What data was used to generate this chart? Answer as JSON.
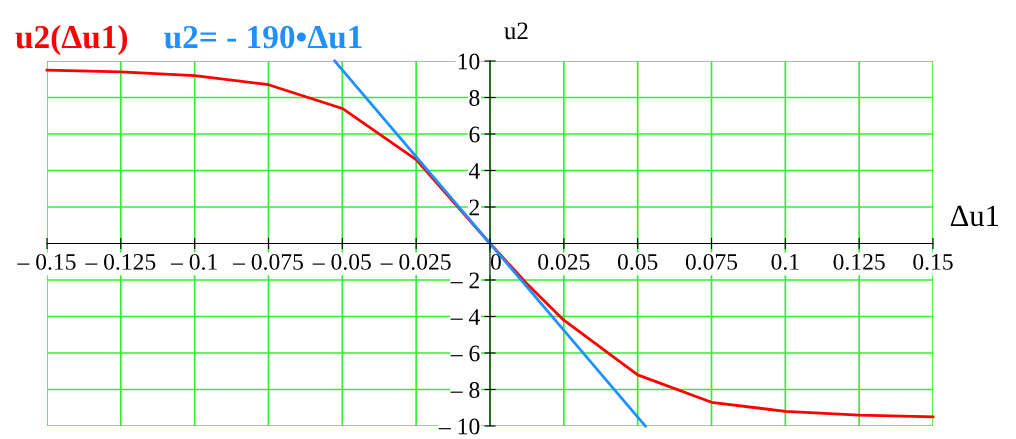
{
  "chart_data": {
    "type": "line",
    "xlabel": "Δu1",
    "ylabel": "u2",
    "xlim": [
      -0.15,
      0.15
    ],
    "ylim": [
      -10,
      10
    ],
    "xticks": [
      {
        "value": -0.15,
        "label": "– 0.15"
      },
      {
        "value": -0.125,
        "label": "– 0.125"
      },
      {
        "value": -0.1,
        "label": "– 0.1"
      },
      {
        "value": -0.075,
        "label": "– 0.075"
      },
      {
        "value": -0.05,
        "label": "– 0.05"
      },
      {
        "value": -0.025,
        "label": "– 0.025"
      },
      0,
      0.025,
      0.05,
      0.075,
      0.1,
      0.125,
      0.15
    ],
    "yticks": [
      {
        "value": -10,
        "label": "– 10"
      },
      {
        "value": -8,
        "label": "– 8"
      },
      {
        "value": -6,
        "label": "– 6"
      },
      {
        "value": -4,
        "label": "– 4"
      },
      {
        "value": -2,
        "label": "– 2"
      },
      2,
      4,
      6,
      8,
      10
    ],
    "grid": true,
    "legend": false,
    "marker": "none",
    "line_style": "solid",
    "series": [
      {
        "name": "u2(Δu1)",
        "color": "#ff0000",
        "x": [
          -0.15,
          -0.125,
          -0.1,
          -0.075,
          -0.05,
          -0.025,
          -0.0125,
          0,
          0.0125,
          0.025,
          0.05,
          0.075,
          0.1,
          0.125,
          0.15
        ],
        "values": [
          9.5,
          9.4,
          9.2,
          8.7,
          7.4,
          4.6,
          2.3,
          0,
          -2.2,
          -4.2,
          -7.2,
          -8.7,
          -9.2,
          -9.4,
          -9.5
        ]
      },
      {
        "name": "u2= - 190•Δu1",
        "color": "#1e90ff",
        "x": [
          -0.0526,
          0.0526
        ],
        "values": [
          10,
          -10
        ]
      }
    ]
  }
}
